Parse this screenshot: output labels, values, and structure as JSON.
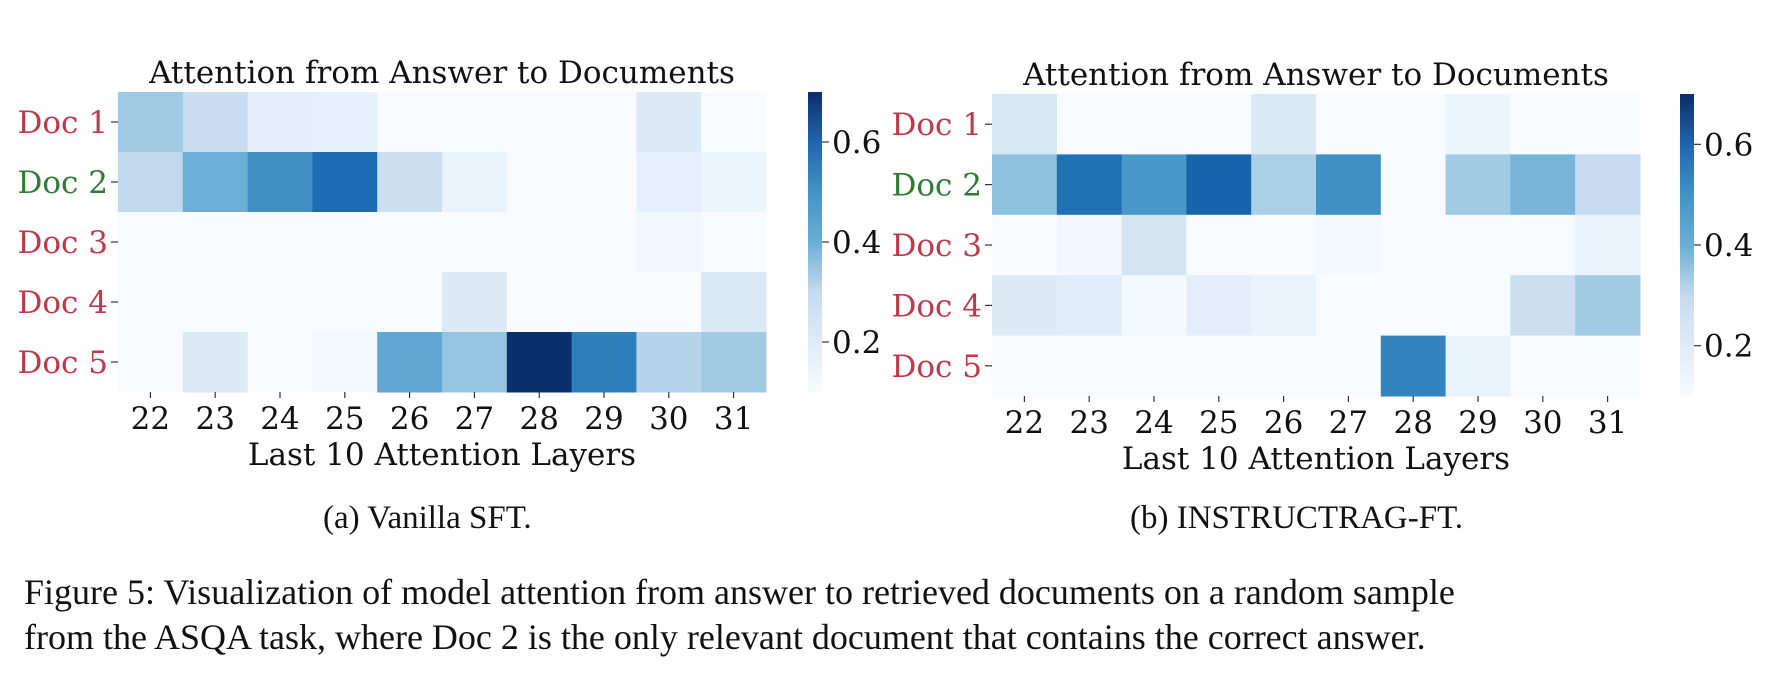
{
  "chart_data": [
    {
      "type": "heatmap",
      "title": "Attention from Answer to Documents",
      "xlabel": "Last 10 Attention Layers",
      "ylabel": "",
      "x": [
        "22",
        "23",
        "24",
        "25",
        "26",
        "27",
        "28",
        "29",
        "30",
        "31"
      ],
      "y": [
        "Doc 1",
        "Doc 2",
        "Doc 3",
        "Doc 4",
        "Doc 5"
      ],
      "y_label_colors": [
        "#c0394b",
        "#2e7d32",
        "#c0394b",
        "#c0394b",
        "#c0394b"
      ],
      "values": [
        [
          0.32,
          0.24,
          0.16,
          0.15,
          0.08,
          0.06,
          0.05,
          0.07,
          0.18,
          0.09
        ],
        [
          0.26,
          0.4,
          0.48,
          0.56,
          0.23,
          0.14,
          0.03,
          0.06,
          0.15,
          0.13
        ],
        [
          0.09,
          0.03,
          0.04,
          0.03,
          0.03,
          0.07,
          0.04,
          0.04,
          0.12,
          0.09
        ],
        [
          0.08,
          0.03,
          0.1,
          0.03,
          0.03,
          0.18,
          0.07,
          0.09,
          0.04,
          0.19
        ],
        [
          0.07,
          0.18,
          0.04,
          0.11,
          0.42,
          0.34,
          0.72,
          0.52,
          0.28,
          0.32
        ]
      ],
      "colorbar": {
        "min": 0.1,
        "max": 0.7,
        "ticks": [
          "0.2",
          "0.4",
          "0.6"
        ],
        "tick_values": [
          0.2,
          0.4,
          0.6
        ]
      },
      "subcaption": "(a) Vanilla SFT."
    },
    {
      "type": "heatmap",
      "title": "Attention from Answer to Documents",
      "xlabel": "Last 10 Attention Layers",
      "ylabel": "",
      "x": [
        "22",
        "23",
        "24",
        "25",
        "26",
        "27",
        "28",
        "29",
        "30",
        "31"
      ],
      "y": [
        "Doc 1",
        "Doc 2",
        "Doc 3",
        "Doc 4",
        "Doc 5"
      ],
      "y_label_colors": [
        "#c0394b",
        "#2e7d32",
        "#c0394b",
        "#c0394b",
        "#c0394b"
      ],
      "values": [
        [
          0.2,
          0.05,
          0.05,
          0.05,
          0.19,
          0.07,
          0.06,
          0.13,
          0.09,
          0.06
        ],
        [
          0.35,
          0.55,
          0.46,
          0.58,
          0.3,
          0.48,
          0.1,
          0.32,
          0.38,
          0.25
        ],
        [
          0.07,
          0.12,
          0.21,
          0.08,
          0.06,
          0.11,
          0.08,
          0.08,
          0.07,
          0.14
        ],
        [
          0.18,
          0.17,
          0.11,
          0.16,
          0.14,
          0.06,
          0.06,
          0.1,
          0.23,
          0.32
        ],
        [
          0.05,
          0.05,
          0.05,
          0.05,
          0.09,
          0.07,
          0.51,
          0.14,
          0.06,
          0.09
        ]
      ],
      "colorbar": {
        "min": 0.1,
        "max": 0.7,
        "ticks": [
          "0.2",
          "0.4",
          "0.6"
        ],
        "tick_values": [
          0.2,
          0.4,
          0.6
        ]
      },
      "subcaption_prefix": "(b) ",
      "subcaption_smallcaps": "INSTRUCT",
      "subcaption_rest": "RAG-FT."
    }
  ],
  "caption": {
    "line1": "Figure 5: Visualization of model attention from answer to retrieved documents on a random sample",
    "line2": "from the ASQA task, where Doc 2 is the only relevant document that contains the correct answer."
  }
}
